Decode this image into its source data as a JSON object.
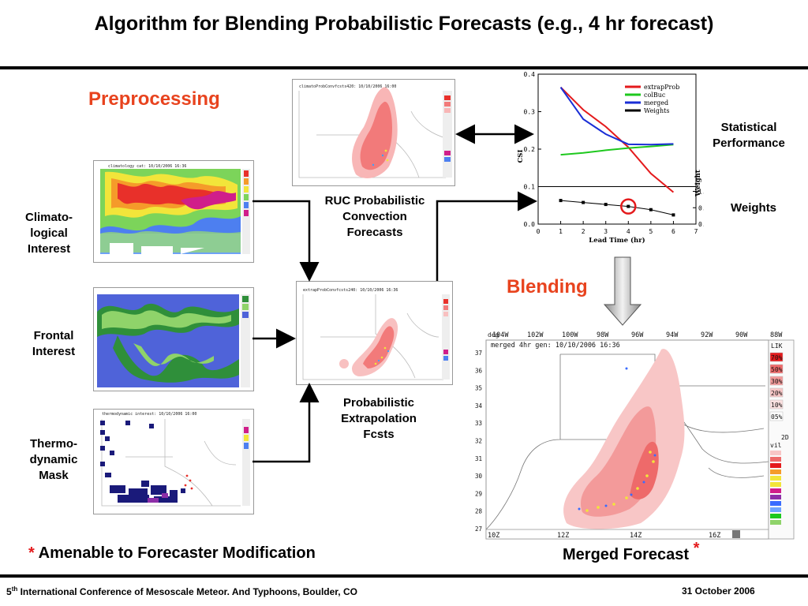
{
  "title": "Algorithm for Blending Probabilistic Forecasts (e.g., 4 hr forecast)",
  "sections": {
    "preprocessing": "Preprocessing",
    "blending": "Blending"
  },
  "labels": {
    "climatological": [
      "Climato-",
      "logical",
      "Interest"
    ],
    "frontal": [
      "Frontal",
      "Interest"
    ],
    "thermodynamic": [
      "Thermo-",
      "dynamic",
      "Mask"
    ],
    "ruc": [
      "RUC Probabilistic",
      "Convection",
      "Forecasts"
    ],
    "extrapolation": [
      "Probabilistic",
      "Extrapolation",
      "Fcsts"
    ],
    "statistical": [
      "Statistical",
      "Performance"
    ],
    "weights": "Weights",
    "merged": "Merged Forecast",
    "asterisk": "*",
    "amenable": "Amenable to Forecaster Modification"
  },
  "maps": {
    "climo_header": "climatology cat: 10/10/2006 16:36",
    "ruc_header": "climatoProbConvfcsts420: 10/10/2006 16:00",
    "extrap_header": "extrapProbConvfcsts240: 10/10/2006 16:36",
    "thermo_header": "thermodynamic interest: 10/10/2006 16:00",
    "merged_header": "merged 4hr gen: 10/10/2006 16:36",
    "merged_top_lons": [
      "104W",
      "102W",
      "100W",
      "98W",
      "96W",
      "94W",
      "92W",
      "90W",
      "88W"
    ],
    "merged_lats": [
      "37",
      "36",
      "35",
      "34",
      "33",
      "32",
      "31",
      "30",
      "29",
      "28",
      "27"
    ],
    "merged_bottom": [
      "10Z",
      "12Z",
      "14Z",
      "16Z",
      "18"
    ],
    "merged_deg": "deg",
    "merged_legend_title": "LIK",
    "merged_legend_values": [
      "70%",
      "50%",
      "30%",
      "20%",
      "10%",
      "05%"
    ],
    "merged_legend2": [
      "2D",
      "vil"
    ],
    "small_top_lons": [
      "104W",
      "102W",
      "100W",
      "98W",
      "96W",
      "94W",
      "92W",
      "90W",
      "88W"
    ],
    "small_bottom": [
      "10Z",
      "12Z",
      "14Z",
      "16Z",
      "18"
    ]
  },
  "chart_data": {
    "type": "line",
    "xlabel": "Lead Time (hr)",
    "ylabel": "CSI",
    "ylabel2": "Weight",
    "xlim": [
      0,
      7
    ],
    "ylim": [
      0.0,
      0.4
    ],
    "ylim2": [
      0.0,
      1.0
    ],
    "x_ticks": [
      "0",
      "1",
      "2",
      "3",
      "4",
      "5",
      "6",
      "7"
    ],
    "y_ticks": [
      "0.0",
      "0.1",
      "0.2",
      "0.3",
      "0.4"
    ],
    "y2_ticks": [
      "0.0",
      "0.5",
      "1.0"
    ],
    "legend": [
      "extrapProb",
      "colBuc",
      "merged",
      "Weights"
    ],
    "series": [
      {
        "name": "extrapProb",
        "color": "#e41a1c",
        "x": [
          1,
          2,
          3,
          4,
          5,
          6
        ],
        "y": [
          0.365,
          0.305,
          0.26,
          0.205,
          0.135,
          0.085
        ]
      },
      {
        "name": "colBuc",
        "color": "#1ec81e",
        "x": [
          1,
          2,
          3,
          4,
          5,
          6
        ],
        "y": [
          0.185,
          0.19,
          0.197,
          0.203,
          0.207,
          0.212
        ]
      },
      {
        "name": "merged",
        "color": "#1a2ed6",
        "x": [
          1,
          2,
          3,
          4,
          5,
          6
        ],
        "y": [
          0.365,
          0.28,
          0.24,
          0.213,
          0.212,
          0.214
        ]
      },
      {
        "name": "Weights",
        "color": "#000000",
        "axis": "right",
        "x": [
          1,
          2,
          3,
          4,
          5,
          6
        ],
        "y": [
          0.72,
          0.66,
          0.6,
          0.54,
          0.44,
          0.28
        ]
      }
    ],
    "highlight": {
      "x": 4,
      "y": 0.54,
      "color": "#e41a1c"
    }
  },
  "footer": {
    "superscript": "th",
    "left_num": "5",
    "left_rest": " International Conference of Mesoscale Meteor. And Typhoons, Boulder, CO",
    "right": "31 October 2006"
  }
}
